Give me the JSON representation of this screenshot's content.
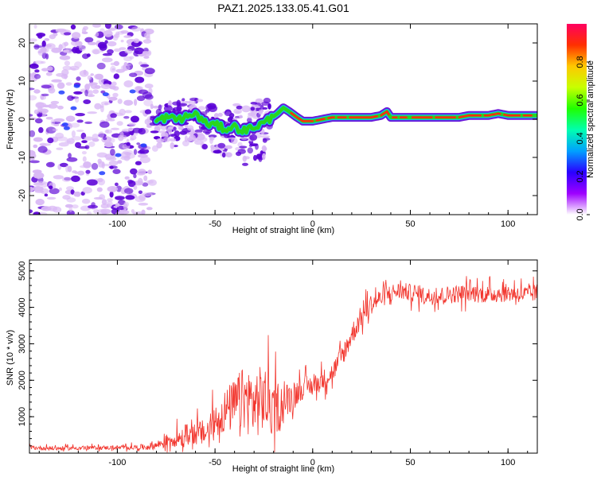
{
  "title": "PAZ1.2025.133.05.41.G01",
  "colors": {
    "snr_line": "#f2352d",
    "spectrum_core": "#ff2a10",
    "spectrum_halo_1": "#29d61d",
    "spectrum_halo_2": "#12c2e6",
    "noise_dark": "#5a00d6",
    "noise_light": "#d9b8f5",
    "axes": "#000000"
  },
  "chart_data": [
    {
      "id": "spectrogram",
      "type": "heatmap",
      "title": "PAZ1.2025.133.05.41.G01",
      "xlabel": "Height of straight line (km)",
      "ylabel": "Frequency (Hz)",
      "xlim": [
        -145,
        115
      ],
      "ylim": [
        -25,
        25
      ],
      "xticks": [
        -100,
        -50,
        0,
        50,
        100
      ],
      "yticks": [
        -20,
        -10,
        0,
        10,
        20
      ],
      "colorbar": {
        "label": "Normalized spectral amplitude",
        "range": [
          0,
          1
        ],
        "ticks": [
          0.0,
          0.2,
          0.4,
          0.6,
          0.8
        ],
        "tick_labels": [
          "0.0",
          "0.2",
          "0.4",
          "0.6",
          "0.8"
        ],
        "colormap": [
          "#ffffff",
          "#9e00ff",
          "#2a00ff",
          "#00a0ff",
          "#00ffb0",
          "#20ff00",
          "#c8ff00",
          "#ffc800",
          "#ff3000",
          "#ff0060"
        ]
      },
      "noise_region": {
        "x": [
          -145,
          -82
        ],
        "frequency_spread": [
          -25,
          25
        ]
      },
      "transition_region": {
        "x": [
          -82,
          -22
        ],
        "frequency_spread": [
          -18,
          8
        ]
      },
      "ridge": {
        "x": [
          -80,
          -75,
          -70,
          -65,
          -60,
          -55,
          -50,
          -45,
          -40,
          -35,
          -30,
          -25,
          -22,
          -18,
          -15,
          -12,
          -8,
          -5,
          -2,
          0,
          5,
          10,
          15,
          20,
          25,
          30,
          35,
          38,
          40,
          45,
          50,
          55,
          60,
          65,
          70,
          75,
          80,
          85,
          90,
          95,
          100,
          105,
          110,
          115
        ],
        "frequency": [
          -0.5,
          0.5,
          0.0,
          0.5,
          1.5,
          -1.0,
          -1.5,
          -2.5,
          -2.0,
          -3.0,
          -2.0,
          -1.0,
          0.0,
          1.5,
          3.0,
          2.0,
          0.5,
          -0.5,
          -0.5,
          -0.5,
          0.0,
          0.5,
          0.5,
          0.5,
          0.5,
          0.5,
          1.0,
          2.0,
          0.5,
          0.5,
          0.5,
          0.5,
          0.5,
          0.5,
          0.5,
          0.5,
          1.0,
          1.0,
          1.0,
          1.5,
          1.0,
          1.0,
          1.0,
          1.0
        ],
        "amplitude": [
          0.35,
          0.4,
          0.45,
          0.4,
          0.5,
          0.35,
          0.4,
          0.35,
          0.3,
          0.35,
          0.4,
          0.4,
          0.45,
          0.5,
          0.55,
          0.6,
          0.65,
          0.7,
          0.75,
          0.8,
          0.85,
          0.9,
          0.9,
          0.9,
          0.9,
          0.9,
          0.85,
          0.8,
          0.9,
          0.95,
          1.0,
          1.0,
          1.0,
          1.0,
          0.95,
          0.95,
          0.9,
          0.85,
          0.85,
          0.8,
          0.85,
          0.85,
          0.85,
          0.85
        ]
      }
    },
    {
      "id": "snr",
      "type": "line",
      "xlabel": "Height of straight line (km)",
      "ylabel": "SNR (10 * v/v)",
      "xlim": [
        -145,
        115
      ],
      "ylim": [
        0,
        5300
      ],
      "xticks": [
        -100,
        -50,
        0,
        50,
        100
      ],
      "yticks": [
        1000,
        2000,
        3000,
        4000,
        5000
      ],
      "series": [
        {
          "name": "SNR",
          "x": [
            -145,
            -130,
            -115,
            -100,
            -90,
            -85,
            -80,
            -75,
            -70,
            -65,
            -60,
            -55,
            -50,
            -45,
            -40,
            -35,
            -30,
            -25,
            -20,
            -15,
            -10,
            -5,
            0,
            5,
            10,
            15,
            20,
            25,
            30,
            35,
            40,
            45,
            50,
            60,
            70,
            80,
            90,
            100,
            110,
            115
          ],
          "values": [
            150,
            130,
            150,
            150,
            160,
            170,
            220,
            320,
            420,
            500,
            560,
            540,
            850,
            1150,
            1300,
            1500,
            1350,
            1500,
            1250,
            1350,
            1600,
            1800,
            1850,
            2000,
            2200,
            2650,
            3250,
            3750,
            4100,
            4250,
            4400,
            4450,
            4400,
            4300,
            4350,
            4400,
            4350,
            4400,
            4350,
            4400
          ],
          "noise_amplitude": [
            70,
            80,
            70,
            80,
            90,
            120,
            150,
            250,
            330,
            400,
            450,
            500,
            650,
            800,
            1000,
            1200,
            1300,
            1250,
            1100,
            750,
            500,
            420,
            380,
            380,
            380,
            400,
            420,
            420,
            380,
            350,
            330,
            330,
            320,
            320,
            330,
            330,
            330,
            330,
            330,
            330
          ]
        }
      ]
    }
  ]
}
